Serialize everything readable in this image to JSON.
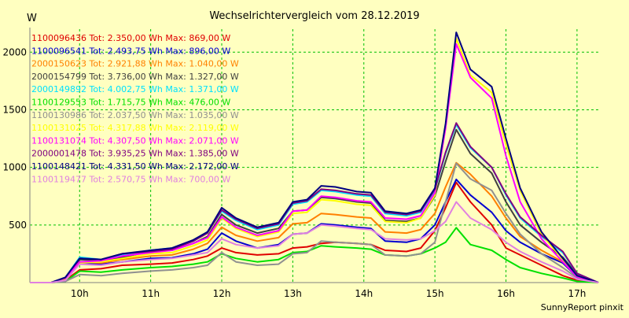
{
  "chart_data": {
    "type": "line",
    "title": "Wechselrichtervergleich vom 28.12.2019",
    "ylabel": "W",
    "xlabel": "",
    "x_ticks": [
      "10h",
      "11h",
      "12h",
      "13h",
      "14h",
      "15h",
      "16h",
      "17h"
    ],
    "y_ticks": [
      500,
      1000,
      1500,
      2000
    ],
    "xlim": [
      9.3,
      17.3
    ],
    "ylim": [
      0,
      2200
    ],
    "grid": true,
    "legend_position": "top-left",
    "footer": "SunnyReport pinxit",
    "x": [
      9.3,
      9.6,
      9.8,
      10.0,
      10.3,
      10.6,
      11.0,
      11.3,
      11.6,
      11.8,
      12.0,
      12.2,
      12.5,
      12.8,
      13.0,
      13.2,
      13.4,
      13.6,
      13.9,
      14.1,
      14.3,
      14.6,
      14.8,
      15.0,
      15.15,
      15.3,
      15.5,
      15.8,
      16.0,
      16.2,
      16.5,
      16.8,
      17.0,
      17.3
    ],
    "series": [
      {
        "label": "1100096436 Tot: 2.350,00 Wh Max: 869,00 W",
        "color": "#e00000",
        "values": [
          0,
          0,
          20,
          110,
          120,
          150,
          160,
          170,
          200,
          230,
          300,
          260,
          240,
          250,
          300,
          310,
          340,
          350,
          340,
          330,
          280,
          270,
          300,
          450,
          650,
          869,
          700,
          500,
          300,
          240,
          150,
          60,
          20,
          0
        ]
      },
      {
        "label": "1100096541 Tot: 2.493,75 Wh Max: 896,00 W",
        "color": "#0000d0",
        "values": [
          0,
          0,
          30,
          170,
          160,
          180,
          210,
          215,
          250,
          290,
          430,
          360,
          300,
          330,
          420,
          430,
          510,
          500,
          480,
          470,
          360,
          350,
          380,
          500,
          700,
          896,
          760,
          610,
          450,
          350,
          250,
          170,
          50,
          0
        ]
      },
      {
        "label": "2000150623 Tot: 2.921,88 Wh Max: 1.040,00 W",
        "color": "#ff8000",
        "values": [
          0,
          0,
          30,
          180,
          170,
          200,
          230,
          240,
          290,
          340,
          480,
          410,
          360,
          390,
          510,
          520,
          600,
          590,
          570,
          560,
          440,
          430,
          460,
          600,
          830,
          1040,
          940,
          750,
          560,
          400,
          280,
          180,
          60,
          0
        ]
      },
      {
        "label": "2000154799 Tot: 3.736,00 Wh Max: 1.327,00 W",
        "color": "#404040",
        "values": [
          0,
          0,
          40,
          200,
          190,
          220,
          270,
          280,
          340,
          400,
          590,
          500,
          430,
          470,
          620,
          630,
          740,
          730,
          700,
          690,
          540,
          530,
          560,
          750,
          1050,
          1327,
          1120,
          950,
          700,
          500,
          350,
          220,
          70,
          0
        ]
      },
      {
        "label": "2000149892 Tot: 4.002,75 Wh Max: 1.371,00 W",
        "color": "#00e0ff",
        "values": [
          0,
          0,
          45,
          220,
          200,
          240,
          280,
          300,
          360,
          440,
          620,
          540,
          460,
          500,
          680,
          700,
          800,
          790,
          760,
          750,
          600,
          580,
          610,
          800,
          1120,
          1371,
          1170,
          1000,
          760,
          560,
          400,
          260,
          80,
          0
        ]
      },
      {
        "label": "1100129553 Tot: 1.715,75 Wh Max: 476,00 W",
        "color": "#00e000",
        "values": [
          0,
          0,
          10,
          100,
          90,
          110,
          130,
          140,
          160,
          180,
          250,
          210,
          180,
          200,
          260,
          270,
          320,
          310,
          300,
          290,
          240,
          230,
          250,
          300,
          350,
          476,
          330,
          280,
          200,
          130,
          80,
          40,
          10,
          0
        ]
      },
      {
        "label": "1100130986 Tot: 2.037,50 Wh Max: 1.035,00 W",
        "color": "#909090",
        "values": [
          0,
          0,
          10,
          70,
          60,
          80,
          100,
          110,
          130,
          150,
          260,
          180,
          150,
          160,
          250,
          260,
          360,
          350,
          340,
          330,
          240,
          230,
          250,
          350,
          700,
          1035,
          900,
          800,
          600,
          420,
          250,
          130,
          40,
          0
        ]
      },
      {
        "label": "1100131025 Tot: 4.317,88 Wh Max: 2.119,00 W",
        "color": "#ffff00",
        "values": [
          0,
          0,
          40,
          170,
          180,
          210,
          250,
          260,
          320,
          370,
          560,
          470,
          400,
          440,
          600,
          610,
          720,
          710,
          680,
          670,
          530,
          520,
          560,
          760,
          1350,
          2119,
          1800,
          1650,
          1200,
          800,
          420,
          200,
          60,
          0
        ]
      },
      {
        "label": "1100131074 Tot: 4.307,50 Wh Max: 2.071,00 W",
        "color": "#ff00ff",
        "values": [
          0,
          0,
          40,
          180,
          190,
          230,
          260,
          280,
          340,
          390,
          570,
          480,
          410,
          450,
          620,
          630,
          750,
          740,
          710,
          700,
          560,
          550,
          580,
          780,
          1340,
          2071,
          1780,
          1600,
          1100,
          700,
          380,
          180,
          50,
          0
        ]
      },
      {
        "label": "2000001478 Tot: 3.935,25 Wh Max: 1.385,00 W",
        "color": "#800080",
        "values": [
          0,
          0,
          45,
          210,
          200,
          250,
          270,
          290,
          360,
          430,
          630,
          550,
          470,
          510,
          690,
          710,
          810,
          800,
          770,
          760,
          610,
          590,
          620,
          810,
          1130,
          1385,
          1180,
          1000,
          770,
          570,
          410,
          270,
          80,
          0
        ]
      },
      {
        "label": "1100148421 Tot: 4.331,50 Wh Max: 2.172,00 W",
        "color": "#000080",
        "values": [
          0,
          0,
          45,
          210,
          200,
          250,
          280,
          300,
          370,
          440,
          650,
          560,
          480,
          520,
          700,
          720,
          840,
          830,
          790,
          780,
          620,
          600,
          630,
          820,
          1380,
          2172,
          1850,
          1700,
          1250,
          820,
          440,
          210,
          60,
          0
        ]
      },
      {
        "label": "1100119477 Tot: 2.570,75 Wh Max: 700,00 W",
        "color": "#e080e0",
        "values": [
          0,
          0,
          20,
          160,
          150,
          180,
          200,
          210,
          240,
          260,
          380,
          330,
          300,
          320,
          420,
          430,
          500,
          490,
          470,
          460,
          380,
          370,
          380,
          450,
          530,
          700,
          560,
          460,
          350,
          270,
          180,
          100,
          30,
          0
        ]
      }
    ]
  }
}
